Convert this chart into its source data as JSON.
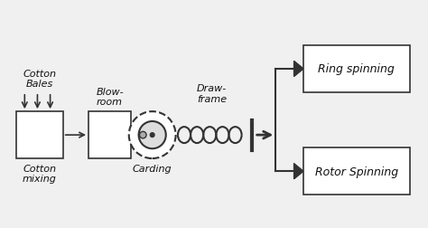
{
  "bg_color": "#f0f0f0",
  "box_color": "#ffffff",
  "box_edge": "#333333",
  "arrow_color": "#555555",
  "text_color": "#111111",
  "title": "",
  "cotton_bales_label": "Cotton\nBales",
  "cotton_mixing_label": "Cotton\nmixing",
  "blowroom_label": "Blow-\nroom",
  "carding_label": "Carding",
  "drawframe_label": "Draw-\nframe",
  "ring_spinning_label": "Ring spinning",
  "rotor_spinning_label": "Rotor Spinning",
  "font_size": 8
}
